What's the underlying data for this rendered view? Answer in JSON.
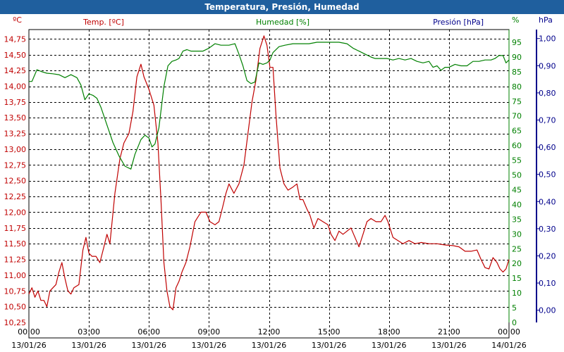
{
  "window": {
    "title": "Temperatura, Presión, Humedad"
  },
  "chart_data": {
    "type": "line",
    "title": "Temperatura, Presión, Humedad",
    "grid": true,
    "colors": {
      "temp": "#c00000",
      "humidity": "#008000",
      "pressure": "#00008b",
      "title_bar": "#1f5f9e"
    },
    "left_axis": {
      "label": "Temp. [ºC]",
      "unit": "ºC",
      "range": [
        10.25,
        14.9
      ],
      "ticks": [
        "10,25",
        "10,50",
        "10,75",
        "11,00",
        "11,25",
        "11,50",
        "11,75",
        "12,00",
        "12,25",
        "12,50",
        "12,75",
        "13,00",
        "13,25",
        "13,50",
        "13,75",
        "14,00",
        "14,25",
        "14,50",
        "14,75"
      ],
      "tick_values": [
        10.25,
        10.5,
        10.75,
        11.0,
        11.25,
        11.5,
        11.75,
        12.0,
        12.25,
        12.5,
        12.75,
        13.0,
        13.25,
        13.5,
        13.75,
        14.0,
        14.25,
        14.5,
        14.75
      ]
    },
    "humidity_axis": {
      "label": "Humedad [%]",
      "unit": "%",
      "range": [
        0,
        99.3
      ],
      "ticks": [
        "0",
        "5",
        "10",
        "15",
        "20",
        "25",
        "30",
        "35",
        "40",
        "45",
        "50",
        "55",
        "60",
        "65",
        "70",
        "75",
        "80",
        "85",
        "90",
        "95"
      ],
      "tick_values": [
        0,
        5,
        10,
        15,
        20,
        25,
        30,
        35,
        40,
        45,
        50,
        55,
        60,
        65,
        70,
        75,
        80,
        85,
        90,
        95
      ]
    },
    "pressure_axis": {
      "label": "Presión [hPa]",
      "unit": "hPa",
      "range": [
        -0.045,
        1.033
      ],
      "ticks": [
        "0,00",
        "0,10",
        "0,20",
        "0,30",
        "0,40",
        "0,50",
        "0,60",
        "0,70",
        "0,80",
        "0,90",
        "1,00"
      ],
      "tick_values": [
        0,
        0.1,
        0.2,
        0.3,
        0.4,
        0.5,
        0.6,
        0.7,
        0.8,
        0.9,
        1.0
      ]
    },
    "x_axis": {
      "range": [
        0,
        24
      ],
      "ticks": [
        {
          "h": 0,
          "time": "00:00",
          "date": "13/01/26"
        },
        {
          "h": 3,
          "time": "03:00",
          "date": "13/01/26"
        },
        {
          "h": 6,
          "time": "06:00",
          "date": "13/01/26"
        },
        {
          "h": 9,
          "time": "09:00",
          "date": "13/01/26"
        },
        {
          "h": 12,
          "time": "12:00",
          "date": "13/01/26"
        },
        {
          "h": 15,
          "time": "15:00",
          "date": "13/01/26"
        },
        {
          "h": 18,
          "time": "18:00",
          "date": "13/01/26"
        },
        {
          "h": 21,
          "time": "21:00",
          "date": "13/01/26"
        },
        {
          "h": 24,
          "time": "00:00",
          "date": "14/01/26"
        }
      ]
    },
    "series": [
      {
        "name": "Temp. [ºC]",
        "axis": "left",
        "points": [
          [
            0.0,
            10.7
          ],
          [
            0.15,
            10.8
          ],
          [
            0.3,
            10.65
          ],
          [
            0.45,
            10.75
          ],
          [
            0.6,
            10.6
          ],
          [
            0.75,
            10.6
          ],
          [
            0.9,
            10.5
          ],
          [
            1.05,
            10.75
          ],
          [
            1.2,
            10.8
          ],
          [
            1.35,
            10.85
          ],
          [
            1.5,
            11.05
          ],
          [
            1.65,
            11.2
          ],
          [
            1.8,
            10.95
          ],
          [
            1.95,
            10.75
          ],
          [
            2.1,
            10.7
          ],
          [
            2.25,
            10.8
          ],
          [
            2.5,
            10.85
          ],
          [
            2.7,
            11.4
          ],
          [
            2.85,
            11.6
          ],
          [
            3.0,
            11.35
          ],
          [
            3.15,
            11.3
          ],
          [
            3.35,
            11.3
          ],
          [
            3.55,
            11.2
          ],
          [
            3.75,
            11.45
          ],
          [
            3.9,
            11.65
          ],
          [
            4.05,
            11.5
          ],
          [
            4.3,
            12.3
          ],
          [
            4.55,
            12.85
          ],
          [
            4.75,
            13.1
          ],
          [
            5.0,
            13.25
          ],
          [
            5.2,
            13.6
          ],
          [
            5.4,
            14.15
          ],
          [
            5.6,
            14.35
          ],
          [
            5.75,
            14.15
          ],
          [
            6.0,
            13.95
          ],
          [
            6.25,
            13.7
          ],
          [
            6.45,
            13.1
          ],
          [
            6.6,
            12.2
          ],
          [
            6.75,
            11.2
          ],
          [
            6.9,
            10.75
          ],
          [
            7.05,
            10.5
          ],
          [
            7.2,
            10.45
          ],
          [
            7.35,
            10.8
          ],
          [
            7.5,
            10.9
          ],
          [
            7.65,
            11.05
          ],
          [
            7.85,
            11.2
          ],
          [
            8.05,
            11.45
          ],
          [
            8.3,
            11.85
          ],
          [
            8.6,
            12.0
          ],
          [
            8.85,
            12.0
          ],
          [
            9.05,
            11.85
          ],
          [
            9.3,
            11.8
          ],
          [
            9.5,
            11.85
          ],
          [
            9.7,
            12.1
          ],
          [
            9.85,
            12.3
          ],
          [
            10.0,
            12.45
          ],
          [
            10.25,
            12.3
          ],
          [
            10.5,
            12.45
          ],
          [
            10.75,
            12.75
          ],
          [
            10.95,
            13.25
          ],
          [
            11.15,
            13.75
          ],
          [
            11.35,
            14.1
          ],
          [
            11.55,
            14.6
          ],
          [
            11.75,
            14.8
          ],
          [
            11.9,
            14.65
          ],
          [
            12.05,
            14.3
          ],
          [
            12.2,
            14.3
          ],
          [
            12.35,
            13.55
          ],
          [
            12.55,
            12.7
          ],
          [
            12.75,
            12.45
          ],
          [
            12.95,
            12.35
          ],
          [
            13.2,
            12.4
          ],
          [
            13.4,
            12.45
          ],
          [
            13.55,
            12.2
          ],
          [
            13.7,
            12.2
          ],
          [
            13.9,
            12.05
          ],
          [
            14.05,
            11.95
          ],
          [
            14.25,
            11.75
          ],
          [
            14.45,
            11.9
          ],
          [
            14.7,
            11.85
          ],
          [
            14.95,
            11.8
          ],
          [
            15.1,
            11.65
          ],
          [
            15.3,
            11.55
          ],
          [
            15.5,
            11.7
          ],
          [
            15.7,
            11.65
          ],
          [
            15.9,
            11.7
          ],
          [
            16.1,
            11.75
          ],
          [
            16.3,
            11.6
          ],
          [
            16.5,
            11.45
          ],
          [
            16.7,
            11.65
          ],
          [
            16.9,
            11.85
          ],
          [
            17.1,
            11.9
          ],
          [
            17.35,
            11.85
          ],
          [
            17.6,
            11.85
          ],
          [
            17.8,
            11.95
          ],
          [
            17.95,
            11.85
          ],
          [
            18.2,
            11.6
          ],
          [
            18.45,
            11.55
          ],
          [
            18.7,
            11.5
          ],
          [
            19.0,
            11.55
          ],
          [
            19.3,
            11.5
          ],
          [
            19.6,
            11.52
          ],
          [
            20.0,
            11.5
          ],
          [
            20.4,
            11.5
          ],
          [
            20.8,
            11.48
          ],
          [
            21.2,
            11.47
          ],
          [
            21.5,
            11.45
          ],
          [
            21.8,
            11.38
          ],
          [
            22.1,
            11.38
          ],
          [
            22.4,
            11.4
          ],
          [
            22.6,
            11.25
          ],
          [
            22.8,
            11.12
          ],
          [
            23.0,
            11.1
          ],
          [
            23.2,
            11.28
          ],
          [
            23.4,
            11.2
          ],
          [
            23.55,
            11.1
          ],
          [
            23.7,
            11.05
          ],
          [
            23.85,
            11.1
          ],
          [
            24.0,
            11.25
          ]
        ]
      },
      {
        "name": "Humedad [%]",
        "axis": "humidity",
        "points": [
          [
            0.0,
            81.7
          ],
          [
            0.15,
            81.7
          ],
          [
            0.4,
            85.7
          ],
          [
            0.65,
            85.0
          ],
          [
            0.9,
            84.5
          ],
          [
            1.2,
            84.3
          ],
          [
            1.5,
            84.0
          ],
          [
            1.8,
            83.0
          ],
          [
            2.1,
            84.0
          ],
          [
            2.4,
            83.0
          ],
          [
            2.6,
            80.5
          ],
          [
            2.8,
            75.5
          ],
          [
            3.0,
            77.5
          ],
          [
            3.2,
            77.0
          ],
          [
            3.4,
            76.0
          ],
          [
            3.6,
            73.0
          ],
          [
            3.8,
            69.0
          ],
          [
            4.0,
            65.0
          ],
          [
            4.2,
            61.0
          ],
          [
            4.5,
            56.5
          ],
          [
            4.8,
            53.0
          ],
          [
            5.1,
            52.0
          ],
          [
            5.3,
            57.0
          ],
          [
            5.6,
            62.0
          ],
          [
            5.8,
            63.5
          ],
          [
            6.0,
            62.5
          ],
          [
            6.15,
            59.5
          ],
          [
            6.3,
            60.5
          ],
          [
            6.5,
            66.0
          ],
          [
            6.75,
            80.0
          ],
          [
            6.95,
            87.0
          ],
          [
            7.15,
            88.5
          ],
          [
            7.35,
            89.0
          ],
          [
            7.5,
            89.5
          ],
          [
            7.7,
            92.0
          ],
          [
            7.9,
            92.5
          ],
          [
            8.1,
            92.0
          ],
          [
            8.4,
            92.0
          ],
          [
            8.7,
            92.0
          ],
          [
            9.0,
            93.0
          ],
          [
            9.3,
            94.5
          ],
          [
            9.6,
            94.0
          ],
          [
            10.0,
            94.0
          ],
          [
            10.3,
            94.5
          ],
          [
            10.5,
            91.0
          ],
          [
            10.7,
            87.0
          ],
          [
            10.9,
            82.0
          ],
          [
            11.1,
            81.0
          ],
          [
            11.3,
            81.5
          ],
          [
            11.5,
            88.0
          ],
          [
            11.7,
            87.5
          ],
          [
            11.9,
            88.0
          ],
          [
            12.05,
            89.0
          ],
          [
            12.2,
            91.5
          ],
          [
            12.5,
            93.5
          ],
          [
            12.8,
            94.0
          ],
          [
            13.2,
            94.5
          ],
          [
            13.6,
            94.5
          ],
          [
            14.0,
            94.5
          ],
          [
            14.4,
            95.0
          ],
          [
            14.7,
            95.0
          ],
          [
            15.0,
            95.0
          ],
          [
            15.5,
            95.0
          ],
          [
            15.9,
            94.5
          ],
          [
            16.2,
            93.0
          ],
          [
            16.5,
            92.0
          ],
          [
            16.8,
            91.0
          ],
          [
            17.1,
            90.0
          ],
          [
            17.3,
            89.5
          ],
          [
            17.6,
            89.5
          ],
          [
            17.9,
            89.5
          ],
          [
            18.2,
            89.0
          ],
          [
            18.5,
            89.5
          ],
          [
            18.8,
            89.0
          ],
          [
            19.1,
            89.5
          ],
          [
            19.4,
            88.5
          ],
          [
            19.7,
            88.0
          ],
          [
            20.0,
            88.5
          ],
          [
            20.2,
            86.5
          ],
          [
            20.4,
            87.0
          ],
          [
            20.6,
            85.5
          ],
          [
            20.8,
            86.5
          ],
          [
            21.0,
            86.5
          ],
          [
            21.3,
            87.5
          ],
          [
            21.6,
            87.0
          ],
          [
            21.9,
            87.0
          ],
          [
            22.2,
            88.5
          ],
          [
            22.5,
            88.5
          ],
          [
            22.8,
            89.0
          ],
          [
            23.1,
            89.0
          ],
          [
            23.3,
            89.5
          ],
          [
            23.5,
            90.5
          ],
          [
            23.7,
            90.5
          ],
          [
            23.85,
            88.0
          ],
          [
            24.0,
            89.0
          ]
        ]
      }
    ]
  }
}
